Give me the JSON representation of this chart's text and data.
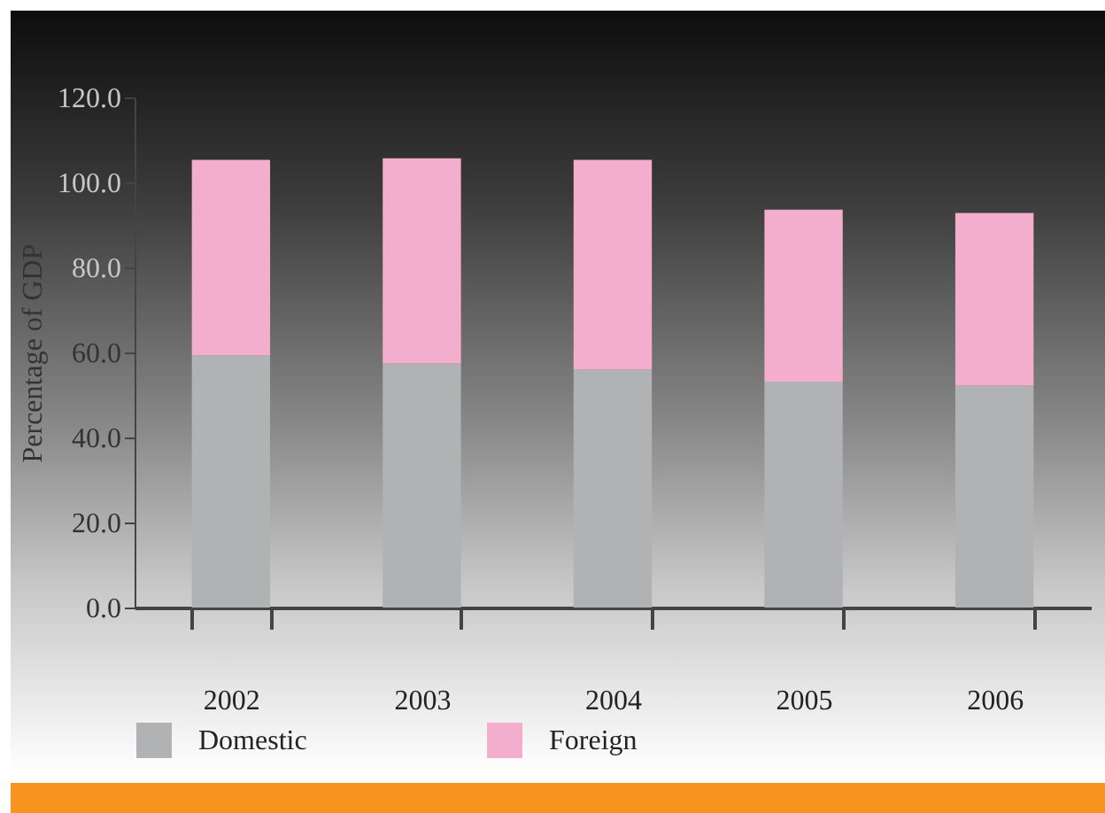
{
  "chart_data": {
    "type": "bar",
    "stacked": true,
    "ylabel": "Percentage of GDP",
    "categories": [
      "2002",
      "2003",
      "2004",
      "2005",
      "2006"
    ],
    "series": [
      {
        "name": "Domestic",
        "color": "#b1b2b4",
        "values": [
          59.3,
          57.4,
          56.0,
          53.1,
          52.2
        ]
      },
      {
        "name": "Foreign",
        "color": "#f4aecd",
        "values": [
          46.0,
          48.3,
          49.3,
          40.5,
          40.6
        ]
      }
    ],
    "ylim": [
      0,
      120
    ],
    "yticks": [
      {
        "value": 0,
        "label": "0.0"
      },
      {
        "value": 20,
        "label": "20.0"
      },
      {
        "value": 40,
        "label": "40.0"
      },
      {
        "value": 60,
        "label": "60.0"
      },
      {
        "value": 80,
        "label": "80.0"
      },
      {
        "value": 100,
        "label": "100.0"
      },
      {
        "value": 120,
        "label": "120.0"
      }
    ],
    "grid": false,
    "legend": "bottom"
  }
}
